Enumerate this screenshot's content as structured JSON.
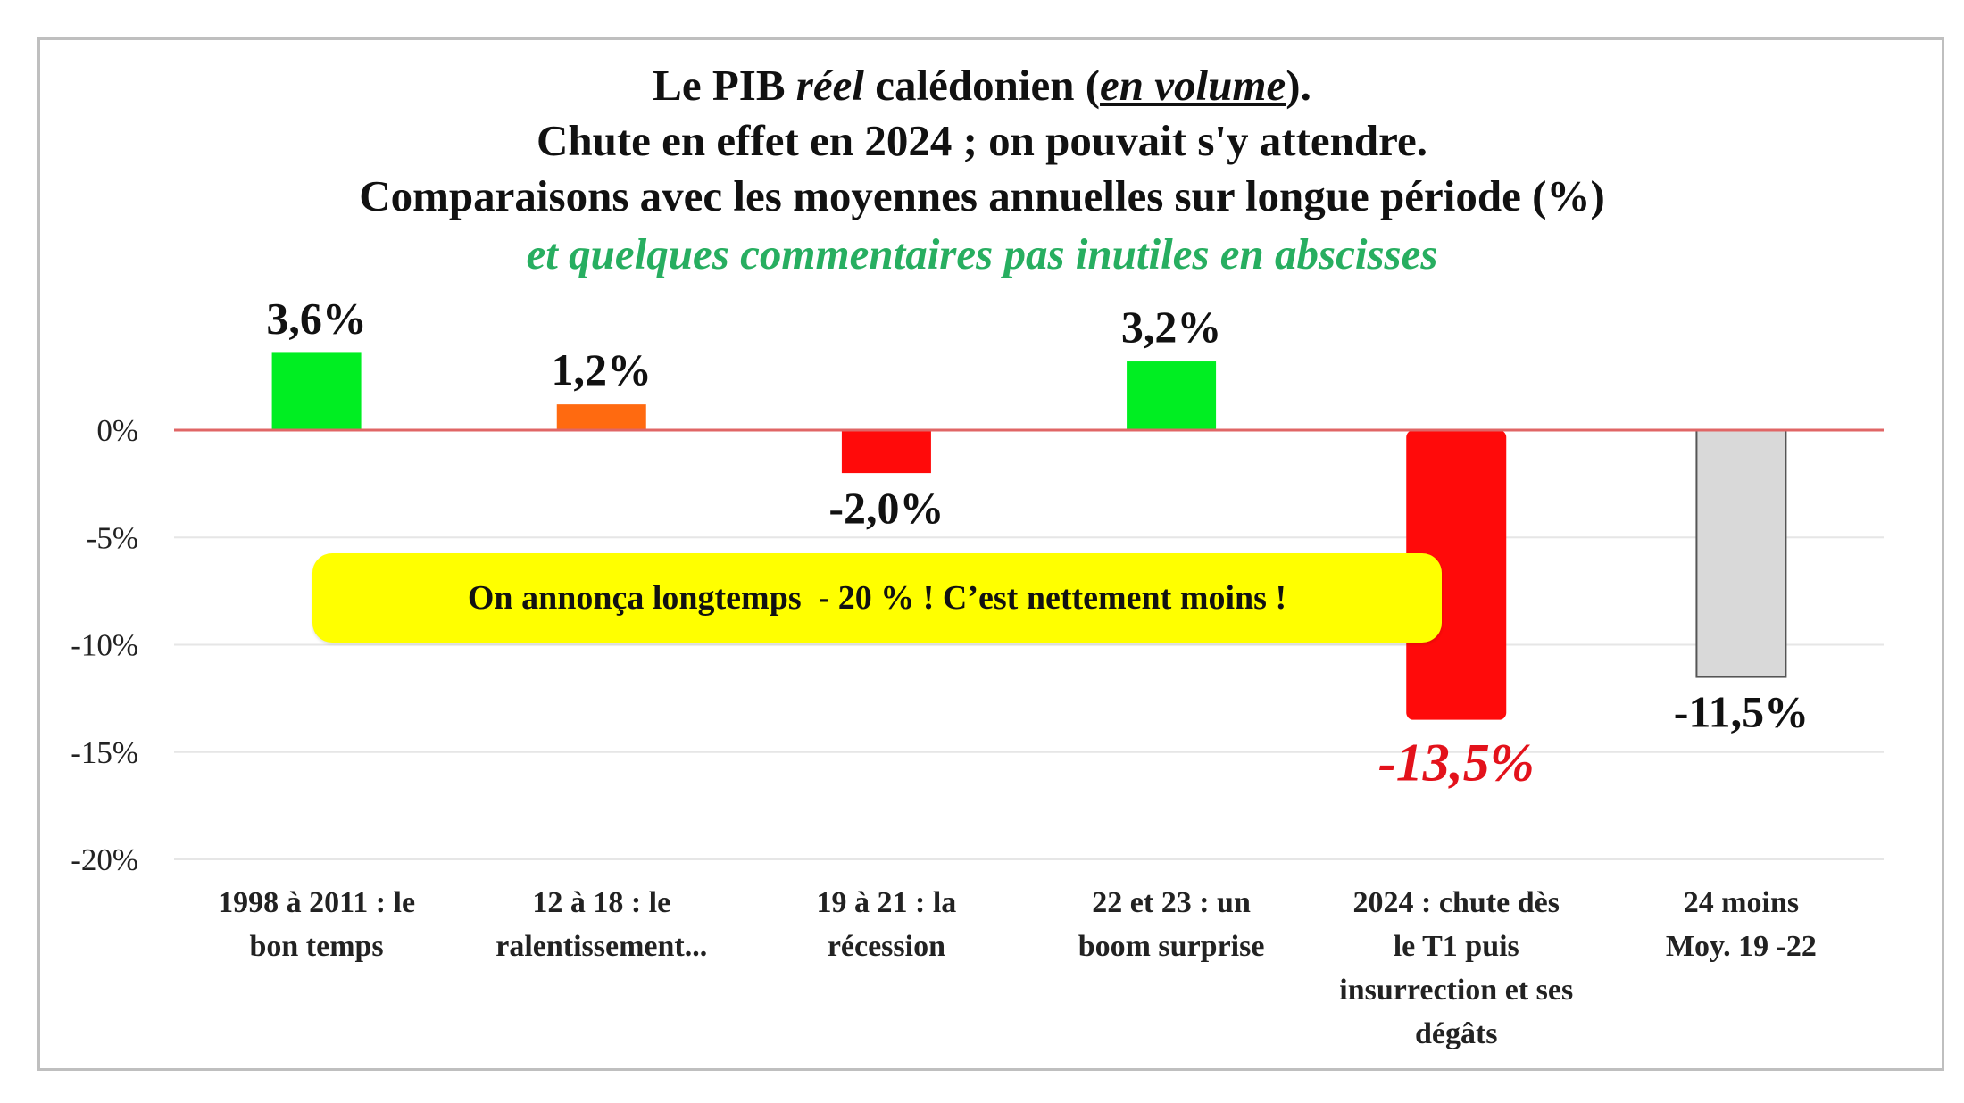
{
  "chart_data": {
    "type": "bar",
    "title": {
      "prefix": "Le PIB ",
      "italic": "réel",
      "middle": " calédonien (",
      "underlined": "en volume",
      "suffix": ")."
    },
    "title_line2": "Chute en effet en 2024 ; on pouvait s'y attendre.",
    "title_line3": "Comparaisons avec les moyennes annuelles sur longue période (%)",
    "subtitle": "et quelques commentaires pas inutiles en abscisses",
    "categories": [
      [
        "1998 à 2011 : le",
        "bon temps"
      ],
      [
        "12 à 18 : le",
        "ralentissement..."
      ],
      [
        "19 à 21 : la",
        "récession"
      ],
      [
        "22 et 23 : un",
        "boom surprise"
      ],
      [
        "2024 : chute dès",
        "le T1 puis",
        "insurrection et ses",
        "dégâts"
      ],
      [
        "24 moins",
        "Moy. 19 -22"
      ]
    ],
    "values": [
      3.6,
      1.2,
      -2.0,
      3.2,
      -13.5,
      -11.5
    ],
    "data_labels": [
      "3,6%",
      "1,2%",
      "-2,0%",
      "3,2%",
      "-13,5%",
      "-11,5%"
    ],
    "bar_colors": [
      "#00ee22",
      "#ff6a10",
      "#ff0a0a",
      "#00ee22",
      "#ff0a0a",
      "#d9d9d9"
    ],
    "highlight_index": 4,
    "ylim": [
      -20,
      5
    ],
    "yticks": [
      0,
      -5,
      -10,
      -15,
      -20
    ],
    "ytick_labels": [
      "0%",
      "-5%",
      "-10%",
      "-15%",
      "-20%"
    ],
    "grid": true,
    "zero_line_color": "#e06666",
    "annotation": "On annonça longtemps  - 20 % ! C’est nettement moins !",
    "annotation_color": "#ffff00",
    "subtitle_color": "#27ae60"
  }
}
